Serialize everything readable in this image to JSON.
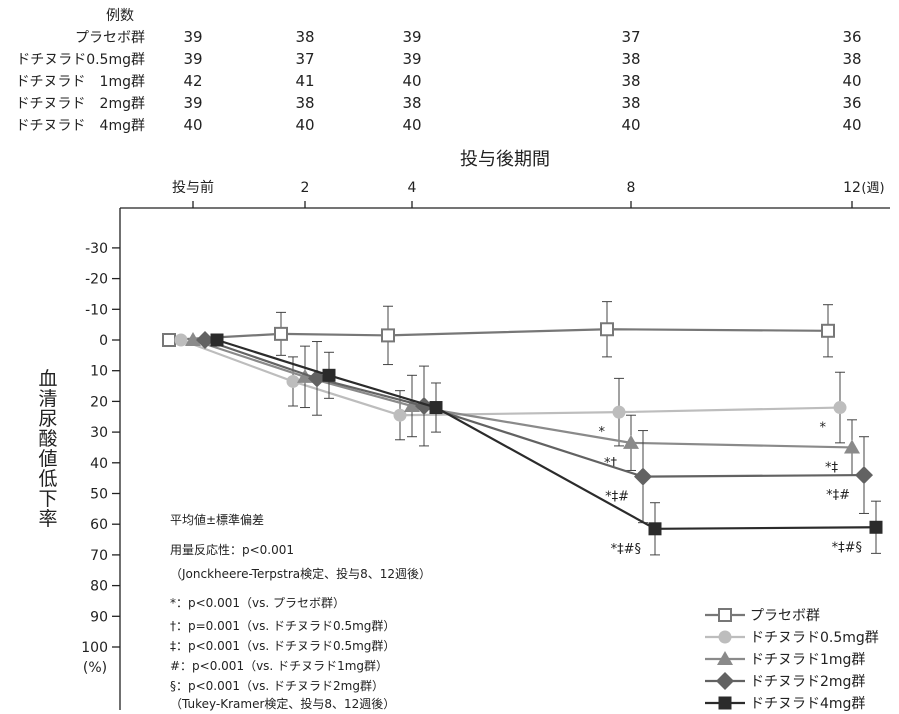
{
  "chart_data": {
    "type": "line",
    "xlabel": "投与後期間",
    "x_unit": "(週)",
    "x_tick_labels": [
      "投与前",
      "2",
      "4",
      "8",
      "12"
    ],
    "x": [
      0,
      2,
      4,
      8,
      12
    ],
    "ylabel": "血清尿酸値低下率",
    "y_unit": "(%)",
    "y_reversed": true,
    "ylim": [
      -35,
      100
    ],
    "y_ticks": [
      -30,
      -20,
      -10,
      0,
      10,
      20,
      30,
      40,
      50,
      60,
      70,
      80,
      90,
      100
    ],
    "n_table": {
      "header": "例数",
      "rows": [
        {
          "label": "プラセボ群",
          "values": [
            "39",
            "38",
            "39",
            "37",
            "36"
          ]
        },
        {
          "label": "ドチヌラド0.5mg群",
          "values": [
            "39",
            "37",
            "39",
            "38",
            "38"
          ]
        },
        {
          "label": "ドチヌラド　1mg群",
          "values": [
            "42",
            "41",
            "40",
            "38",
            "40"
          ]
        },
        {
          "label": "ドチヌラド　2mg群",
          "values": [
            "39",
            "38",
            "38",
            "38",
            "36"
          ]
        },
        {
          "label": "ドチヌラド　4mg群",
          "values": [
            "40",
            "40",
            "40",
            "40",
            "40"
          ]
        }
      ]
    },
    "series": [
      {
        "name": "プラセボ群",
        "marker": "square-open",
        "color": "#777777",
        "values": [
          0,
          -2,
          -1.5,
          -3.5,
          -3
        ],
        "errors": [
          0,
          7,
          9.5,
          9,
          8.5
        ],
        "labels": [
          "",
          "",
          "",
          "",
          ""
        ]
      },
      {
        "name": "ドチヌラド0.5mg群",
        "marker": "circle",
        "color": "#bdbdbd",
        "values": [
          0,
          13.5,
          24.5,
          23.5,
          22
        ],
        "errors": [
          0,
          8,
          8,
          11,
          11.5
        ],
        "labels": [
          "",
          "",
          "",
          "*",
          "*"
        ]
      },
      {
        "name": "ドチヌラド1mg群",
        "marker": "triangle",
        "color": "#8a8a8a",
        "values": [
          0,
          12,
          21.5,
          33.5,
          35
        ],
        "errors": [
          0,
          10,
          10,
          9,
          9
        ],
        "labels": [
          "",
          "",
          "",
          "*†",
          "*‡"
        ]
      },
      {
        "name": "ドチヌラド2mg群",
        "marker": "diamond",
        "color": "#626262",
        "values": [
          0,
          12.5,
          21.5,
          44.5,
          44
        ],
        "errors": [
          0,
          12,
          13,
          15,
          12.5
        ],
        "labels": [
          "",
          "",
          "",
          "*‡#",
          "*‡#"
        ]
      },
      {
        "name": "ドチヌラド4mg群",
        "marker": "square",
        "color": "#2b2b2b",
        "values": [
          0,
          11.5,
          22,
          61.5,
          61
        ],
        "errors": [
          0,
          7.5,
          8,
          8.5,
          8.5
        ],
        "labels": [
          "",
          "",
          "",
          "*‡#§",
          "*‡#§"
        ]
      }
    ],
    "notes": [
      "平均値±標準偏差",
      "用量反応性：p<0.001",
      "（Jonckheere-Terpstra検定、投与8、12週後）",
      "*：p<0.001（vs. プラセボ群）",
      "†：p=0.001（vs. ドチヌラド0.5mg群）",
      "‡：p<0.001（vs. ドチヌラド0.5mg群）",
      "#：p<0.001（vs. ドチヌラド1mg群）",
      "§：p<0.001（vs. ドチヌラド2mg群）",
      "（Tukey-Kramer検定、投与8、12週後）"
    ],
    "legend": {
      "placement": "bottom-right"
    },
    "grid": false
  }
}
